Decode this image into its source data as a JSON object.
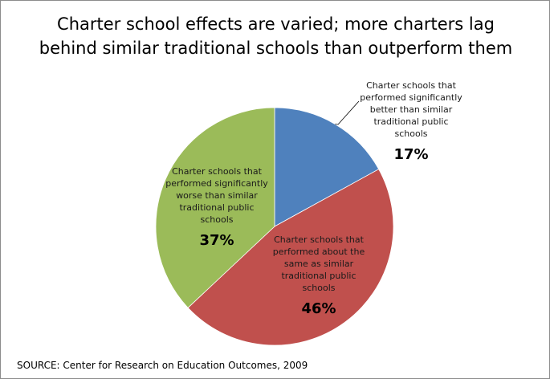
{
  "chart_data": {
    "type": "pie",
    "title": "Charter school effects are varied; more charters lag behind similar traditional schools than outperform them",
    "slices": [
      {
        "label": "Charter schools that performed significantly better than similar traditional public schools",
        "label_lines": [
          "Charter schools that",
          "performed significantly",
          "better than similar",
          "traditional public",
          "schools"
        ],
        "value": 17,
        "value_label": "17%",
        "color": "#4f81bd"
      },
      {
        "label": "Charter schools that performed about the same as similar traditional public schools",
        "label_lines": [
          "Charter schools that",
          "performed about the",
          "same as similar",
          "traditional public",
          "schools"
        ],
        "value": 46,
        "value_label": "46%",
        "color": "#c0504d"
      },
      {
        "label": "Charter schools that performed significantly worse than similar traditional public schools",
        "label_lines": [
          "Charter schools that",
          "performed significantly",
          "worse than similar",
          "traditional public",
          "schools"
        ],
        "value": 37,
        "value_label": "37%",
        "color": "#9bbb59"
      }
    ],
    "source": "SOURCE: Center for  Research on Education Outcomes, 2009"
  }
}
